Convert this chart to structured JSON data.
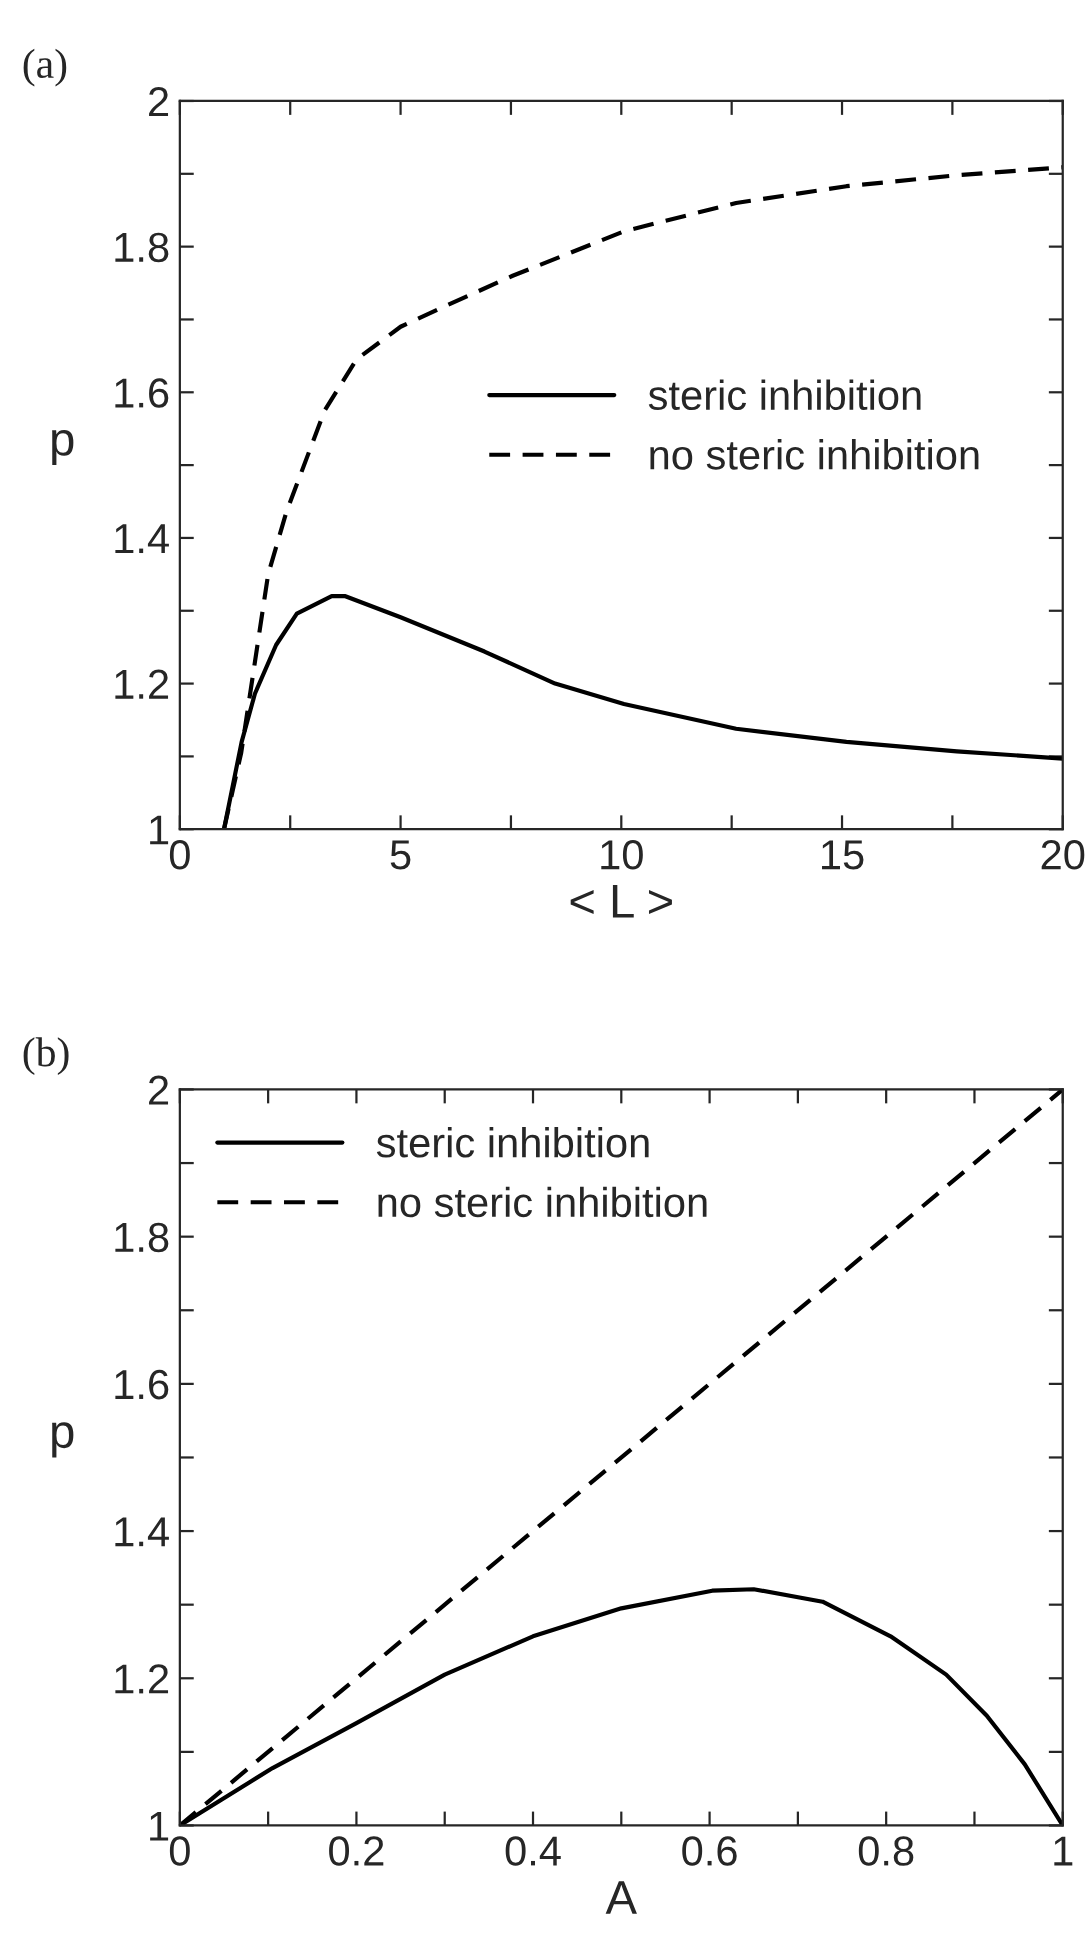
{
  "chart_data": [
    {
      "type": "line",
      "annotations": [
        "(a)"
      ],
      "xlabel": "< L >",
      "ylabel": "p",
      "legend": "right",
      "grid": false,
      "tick_labels": true,
      "xlim": [
        0,
        20
      ],
      "ylim": [
        1,
        2
      ],
      "xticks": [
        0,
        {
          "value": 2.5,
          "label": null
        },
        5,
        {
          "value": 7.5,
          "label": null
        },
        10,
        {
          "value": 12.5,
          "label": null
        },
        15,
        {
          "value": 17.5,
          "label": null
        },
        20
      ],
      "yticks": [
        1,
        {
          "value": 1.1,
          "label": null
        },
        1.2,
        {
          "value": 1.3,
          "label": null
        },
        1.4,
        {
          "value": 1.5,
          "label": null
        },
        1.6,
        {
          "value": 1.7,
          "label": null
        },
        1.8,
        {
          "value": 1.9,
          "label": null
        },
        2
      ],
      "series": [
        {
          "name": "steric inhibition",
          "color": "#000000",
          "line_style": "solid",
          "x": [
            1,
            1.4,
            1.7,
            2.18,
            2.65,
            3.44,
            3.75,
            5.0,
            6.9,
            8.5,
            10.06,
            12.6,
            15.1,
            17.6,
            20
          ],
          "values": [
            1.0,
            1.12,
            1.186,
            1.253,
            1.296,
            1.32,
            1.32,
            1.291,
            1.244,
            1.2,
            1.172,
            1.138,
            1.12,
            1.107,
            1.097
          ]
        },
        {
          "name": "no steric inhibition",
          "color": "#000000",
          "line_style": "dashed",
          "x": [
            1,
            1.39,
            2,
            2.41,
            3.28,
            4,
            5,
            6,
            7.54,
            10.06,
            12.6,
            15.1,
            17.6,
            20
          ],
          "values": [
            1.0,
            1.105,
            1.35,
            1.435,
            1.575,
            1.645,
            1.69,
            1.718,
            1.76,
            1.821,
            1.86,
            1.883,
            1.898,
            1.909
          ]
        }
      ]
    },
    {
      "type": "line",
      "annotations": [
        "(b)"
      ],
      "xlabel": "A",
      "ylabel": "p",
      "legend": "top left",
      "grid": false,
      "xlim": [
        0,
        1
      ],
      "ylim": [
        1,
        2
      ],
      "xticks": [
        0,
        {
          "value": 0.1,
          "label": null
        },
        0.2,
        {
          "value": 0.3,
          "label": null
        },
        0.4,
        {
          "value": 0.5,
          "label": null
        },
        0.6,
        {
          "value": 0.7,
          "label": null
        },
        0.8,
        {
          "value": 0.9,
          "label": null
        },
        1
      ],
      "yticks": [
        1,
        {
          "value": 1.1,
          "label": null
        },
        1.2,
        {
          "value": 1.3,
          "label": null
        },
        1.4,
        {
          "value": 1.5,
          "label": null
        },
        1.6,
        {
          "value": 1.7,
          "label": null
        },
        1.8,
        {
          "value": 1.9,
          "label": null
        },
        2
      ],
      "series": [
        {
          "name": "steric inhibition",
          "color": "#000000",
          "line_style": "solid",
          "x": [
            0,
            0.105,
            0.2,
            0.3,
            0.4,
            0.5,
            0.603,
            0.65,
            0.728,
            0.805,
            0.868,
            0.914,
            0.957,
            1
          ],
          "values": [
            1.0,
            1.078,
            1.139,
            1.205,
            1.257,
            1.295,
            1.319,
            1.321,
            1.304,
            1.257,
            1.205,
            1.149,
            1.083,
            1.0
          ]
        },
        {
          "name": "no steric inhibition",
          "color": "#000000",
          "line_style": "dashed",
          "x": [
            0,
            1
          ],
          "values": [
            1.0,
            2.0
          ]
        }
      ]
    }
  ]
}
